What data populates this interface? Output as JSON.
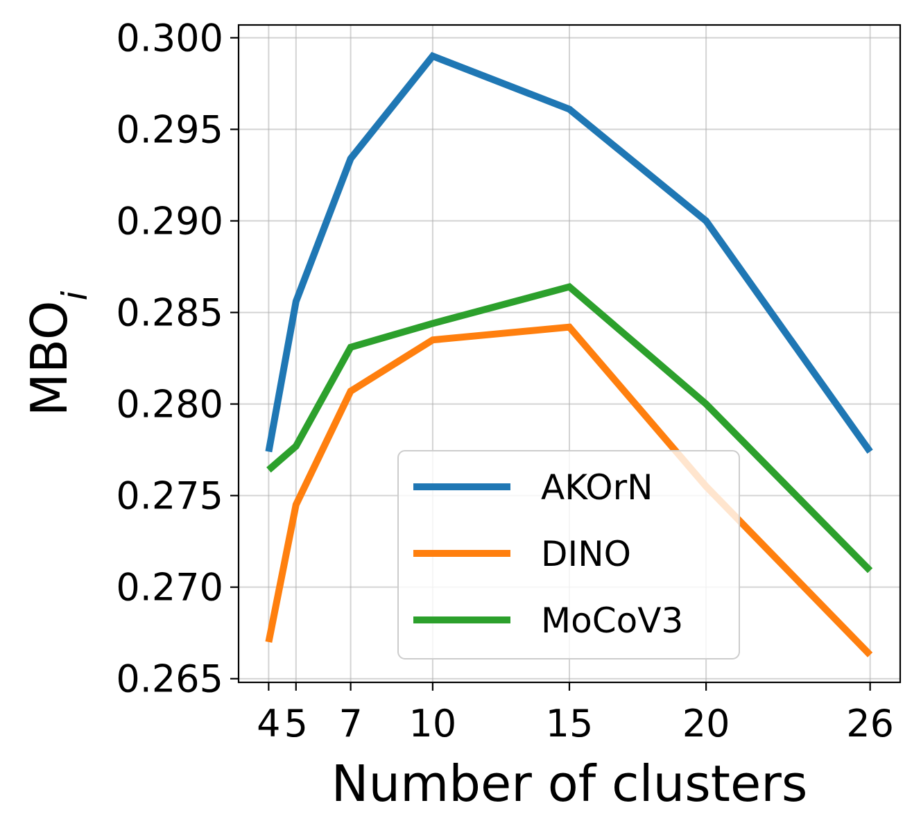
{
  "chart_data": {
    "type": "line",
    "title": "",
    "xlabel": "Number of clusters",
    "ylabel_base": "MBO",
    "ylabel_sub": "i",
    "x": [
      4,
      5,
      7,
      10,
      15,
      20,
      26
    ],
    "x_tick_labels": [
      "4",
      "5",
      "7",
      "10",
      "15",
      "20",
      "26"
    ],
    "xlim": [
      2.9,
      27.1
    ],
    "ylim": [
      0.2648,
      0.3007
    ],
    "y_ticks": [
      0.265,
      0.27,
      0.275,
      0.28,
      0.285,
      0.29,
      0.295,
      0.3
    ],
    "y_tick_labels": [
      "0.265",
      "0.270",
      "0.275",
      "0.280",
      "0.285",
      "0.290",
      "0.295",
      "0.300"
    ],
    "grid": true,
    "legend_position": "lower-center",
    "series": [
      {
        "name": "AKOrN",
        "color": "#1f77b4",
        "values": [
          0.2774,
          0.2856,
          0.2934,
          0.299,
          0.2961,
          0.29,
          0.2774
        ]
      },
      {
        "name": "DINO",
        "color": "#ff7f0e",
        "values": [
          0.267,
          0.2745,
          0.2807,
          0.2835,
          0.2842,
          0.2755,
          0.2663
        ]
      },
      {
        "name": "MoCoV3",
        "color": "#2ca02c",
        "values": [
          0.2764,
          0.2777,
          0.2831,
          0.2844,
          0.2864,
          0.28,
          0.2709
        ]
      }
    ]
  }
}
